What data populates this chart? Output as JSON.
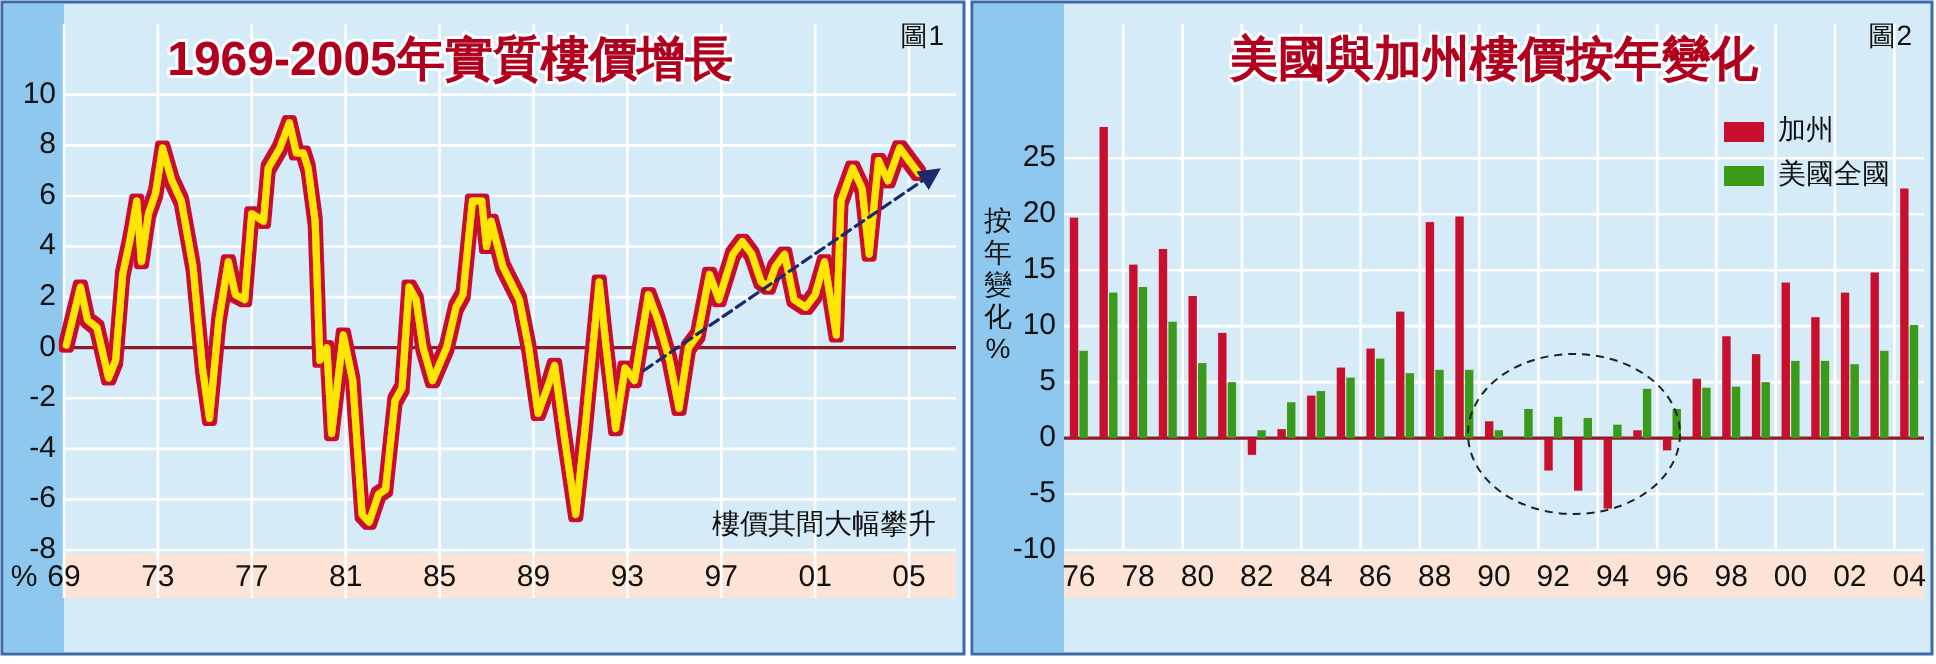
{
  "chart_data": [
    {
      "type": "line",
      "title": "1969-2005年實質樓價增長",
      "ylabel": "%",
      "annotations": [
        "圖1",
        "樓價其間大幅攀升"
      ],
      "xlim": [
        1969,
        2007
      ],
      "xticks": [
        {
          "value": 1969,
          "label": "69"
        },
        {
          "value": 1973,
          "label": "73"
        },
        {
          "value": 1977,
          "label": "77"
        },
        {
          "value": 1981,
          "label": "81"
        },
        {
          "value": 1985,
          "label": "85"
        },
        {
          "value": 1989,
          "label": "89"
        },
        {
          "value": 1993,
          "label": "93"
        },
        {
          "value": 1997,
          "label": "97"
        },
        {
          "value": 2001,
          "label": "01"
        },
        {
          "value": 2005,
          "label": "05"
        }
      ],
      "ylim": [
        -8,
        12.8
      ],
      "yticks": [
        -8,
        -6,
        -4,
        -2,
        0,
        2,
        4,
        6,
        8,
        10
      ],
      "grid": true,
      "ref_lines": [
        {
          "axis": "y",
          "value": 0,
          "color": "#8b1a2a"
        }
      ],
      "series": [
        {
          "color": "#ffe600",
          "x": [
            1969.1,
            1969.7,
            1970.0,
            1970.4,
            1970.9,
            1971.2,
            1971.5,
            1971.8,
            1972.1,
            1972.3,
            1972.6,
            1972.9,
            1973.2,
            1973.6,
            1974.0,
            1974.5,
            1974.9,
            1975.2,
            1975.6,
            1976.0,
            1976.3,
            1976.7,
            1977.0,
            1977.5,
            1977.7,
            1978.2,
            1978.6,
            1978.9,
            1979.2,
            1979.4,
            1979.7,
            1979.9,
            1980.2,
            1980.4,
            1980.9,
            1981.3,
            1981.7,
            1982.0,
            1982.4,
            1982.7,
            1983.1,
            1983.4,
            1983.7,
            1984.0,
            1984.3,
            1984.7,
            1985.3,
            1985.7,
            1986.0,
            1986.4,
            1986.8,
            1987.0,
            1987.2,
            1987.7,
            1988.4,
            1988.8,
            1989.2,
            1989.7,
            1989.9,
            1990.3,
            1990.8,
            1991.2,
            1991.8,
            1992.1,
            1992.5,
            1992.9,
            1993.3,
            1993.9,
            1994.3,
            1994.8,
            1995.2,
            1995.6,
            1996.0,
            1996.5,
            1996.9,
            1997.5,
            1997.9,
            1998.3,
            1998.7,
            1999.0,
            1999.3,
            1999.7,
            2000.1,
            2000.6,
            2001.0,
            2001.4,
            2001.9,
            2002.1,
            2002.6,
            2003.0,
            2003.3,
            2003.7,
            2004.1,
            2004.6,
            2005.0,
            2005.4
          ],
          "values": [
            0.1,
            2.4,
            1.1,
            0.8,
            -1.2,
            -0.5,
            2.9,
            4.2,
            5.8,
            3.4,
            5.3,
            6.1,
            7.9,
            6.6,
            5.8,
            3.2,
            -0.8,
            -2.8,
            1.1,
            3.4,
            2.1,
            1.9,
            5.3,
            5.0,
            7.1,
            7.9,
            8.9,
            7.7,
            7.7,
            7.1,
            5.0,
            -0.5,
            0,
            -3.4,
            0.5,
            -1.3,
            -6.6,
            -6.9,
            -5.8,
            -5.6,
            -2.1,
            -1.6,
            2.4,
            1.9,
            0,
            -1.3,
            0,
            1.6,
            2.1,
            5.8,
            5.8,
            4.0,
            5.0,
            3.2,
            1.9,
            0,
            -2.6,
            -1.3,
            -0.7,
            -3.4,
            -6.6,
            -3.2,
            2.6,
            0,
            -3.2,
            -0.8,
            -1.3,
            2.1,
            1.1,
            -0.5,
            -2.4,
            0,
            0.5,
            2.9,
            1.9,
            3.7,
            4.2,
            3.7,
            2.6,
            2.4,
            3.2,
            3.7,
            1.9,
            1.6,
            2.1,
            3.4,
            0.5,
            5.8,
            7.1,
            6.3,
            3.7,
            7.4,
            6.6,
            7.9,
            7.4,
            6.9
          ]
        },
        {
          "type": "line",
          "color": "#1a2a6c",
          "line_style": "dashed",
          "x": [
            1993.7,
            2006.2
          ],
          "values": [
            -0.9,
            7.0
          ]
        }
      ]
    },
    {
      "type": "bar",
      "title": "美國與加州樓價按年變化",
      "ylabel": "按年變化%",
      "annotations": [
        "圖2"
      ],
      "categories": [
        "76",
        null,
        "78",
        null,
        "80",
        null,
        "82",
        null,
        "84",
        null,
        "86",
        null,
        "88",
        null,
        "90",
        null,
        "92",
        null,
        "94",
        null,
        "96",
        null,
        "98",
        null,
        "00",
        null,
        "02",
        null,
        "04"
      ],
      "ylim": [
        -10,
        37
      ],
      "yticks": [
        -10,
        -5,
        0,
        5,
        10,
        15,
        20,
        25
      ],
      "grid": true,
      "legend": "top right",
      "ref_lines": [
        {
          "axis": "y",
          "value": 0,
          "color": "#8b1a2a"
        }
      ],
      "series": [
        {
          "name": "加州",
          "color": "#c8102e",
          "values": [
            19.7,
            27.8,
            15.5,
            16.9,
            12.7,
            9.4,
            -1.5,
            0.8,
            3.8,
            6.3,
            8.0,
            11.3,
            19.3,
            19.8,
            1.5,
            0,
            -2.9,
            -4.7,
            -6.3,
            0.7,
            -1.1,
            5.3,
            9.1,
            7.5,
            13.9,
            10.8,
            13.0,
            14.8,
            22.3
          ]
        },
        {
          "name": "美國全國",
          "color": "#3a9a1a",
          "values": [
            7.8,
            13.0,
            13.5,
            10.4,
            6.7,
            5.0,
            0.7,
            3.2,
            4.2,
            5.4,
            7.1,
            5.8,
            6.1,
            6.1,
            0.7,
            2.6,
            1.9,
            1.8,
            1.2,
            4.4,
            2.6,
            4.5,
            4.6,
            5.0,
            6.9,
            6.9,
            6.6,
            7.8,
            10.1
          ]
        }
      ]
    }
  ]
}
